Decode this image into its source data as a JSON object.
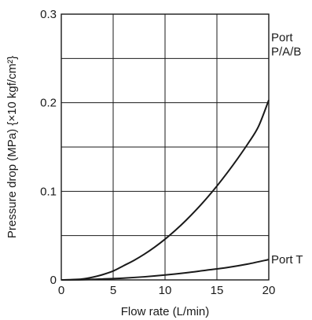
{
  "chart_data": {
    "type": "line",
    "title": "",
    "xlabel": "Flow rate (L/min)",
    "ylabel": "Pressure drop (MPa) {×10 kgf/cm²}",
    "xlim": [
      0,
      20
    ],
    "ylim": [
      0,
      0.3
    ],
    "grid": true,
    "x_ticks": [
      "0",
      "5",
      "10",
      "15",
      "20"
    ],
    "y_ticks": [
      "0",
      "0.1",
      "0.2",
      "0.3"
    ],
    "x_gridlines": [
      0,
      5,
      10,
      15,
      20
    ],
    "y_gridlines": [
      0,
      0.05,
      0.1,
      0.15,
      0.2,
      0.25,
      0.3
    ],
    "series": [
      {
        "name": "Port P/A/B",
        "label_lines": [
          "Port",
          "P/A/B"
        ],
        "x": [
          0,
          1,
          2,
          3,
          4,
          5,
          6,
          7,
          8,
          9,
          10,
          11,
          12,
          13,
          14,
          15,
          16,
          17,
          18,
          19,
          20
        ],
        "y": [
          0,
          0.0003,
          0.001,
          0.003,
          0.006,
          0.01,
          0.016,
          0.022,
          0.029,
          0.037,
          0.046,
          0.056,
          0.067,
          0.079,
          0.092,
          0.106,
          0.121,
          0.137,
          0.154,
          0.173,
          0.203
        ]
      },
      {
        "name": "Port T",
        "label_lines": [
          "Port T"
        ],
        "x": [
          0,
          2,
          4,
          6,
          8,
          10,
          12,
          14,
          16,
          18,
          20
        ],
        "y": [
          0,
          0.0002,
          0.001,
          0.002,
          0.0035,
          0.0055,
          0.008,
          0.011,
          0.014,
          0.018,
          0.023
        ]
      }
    ]
  },
  "colors": {
    "ink": "#1a1a1a",
    "background": "#ffffff"
  }
}
